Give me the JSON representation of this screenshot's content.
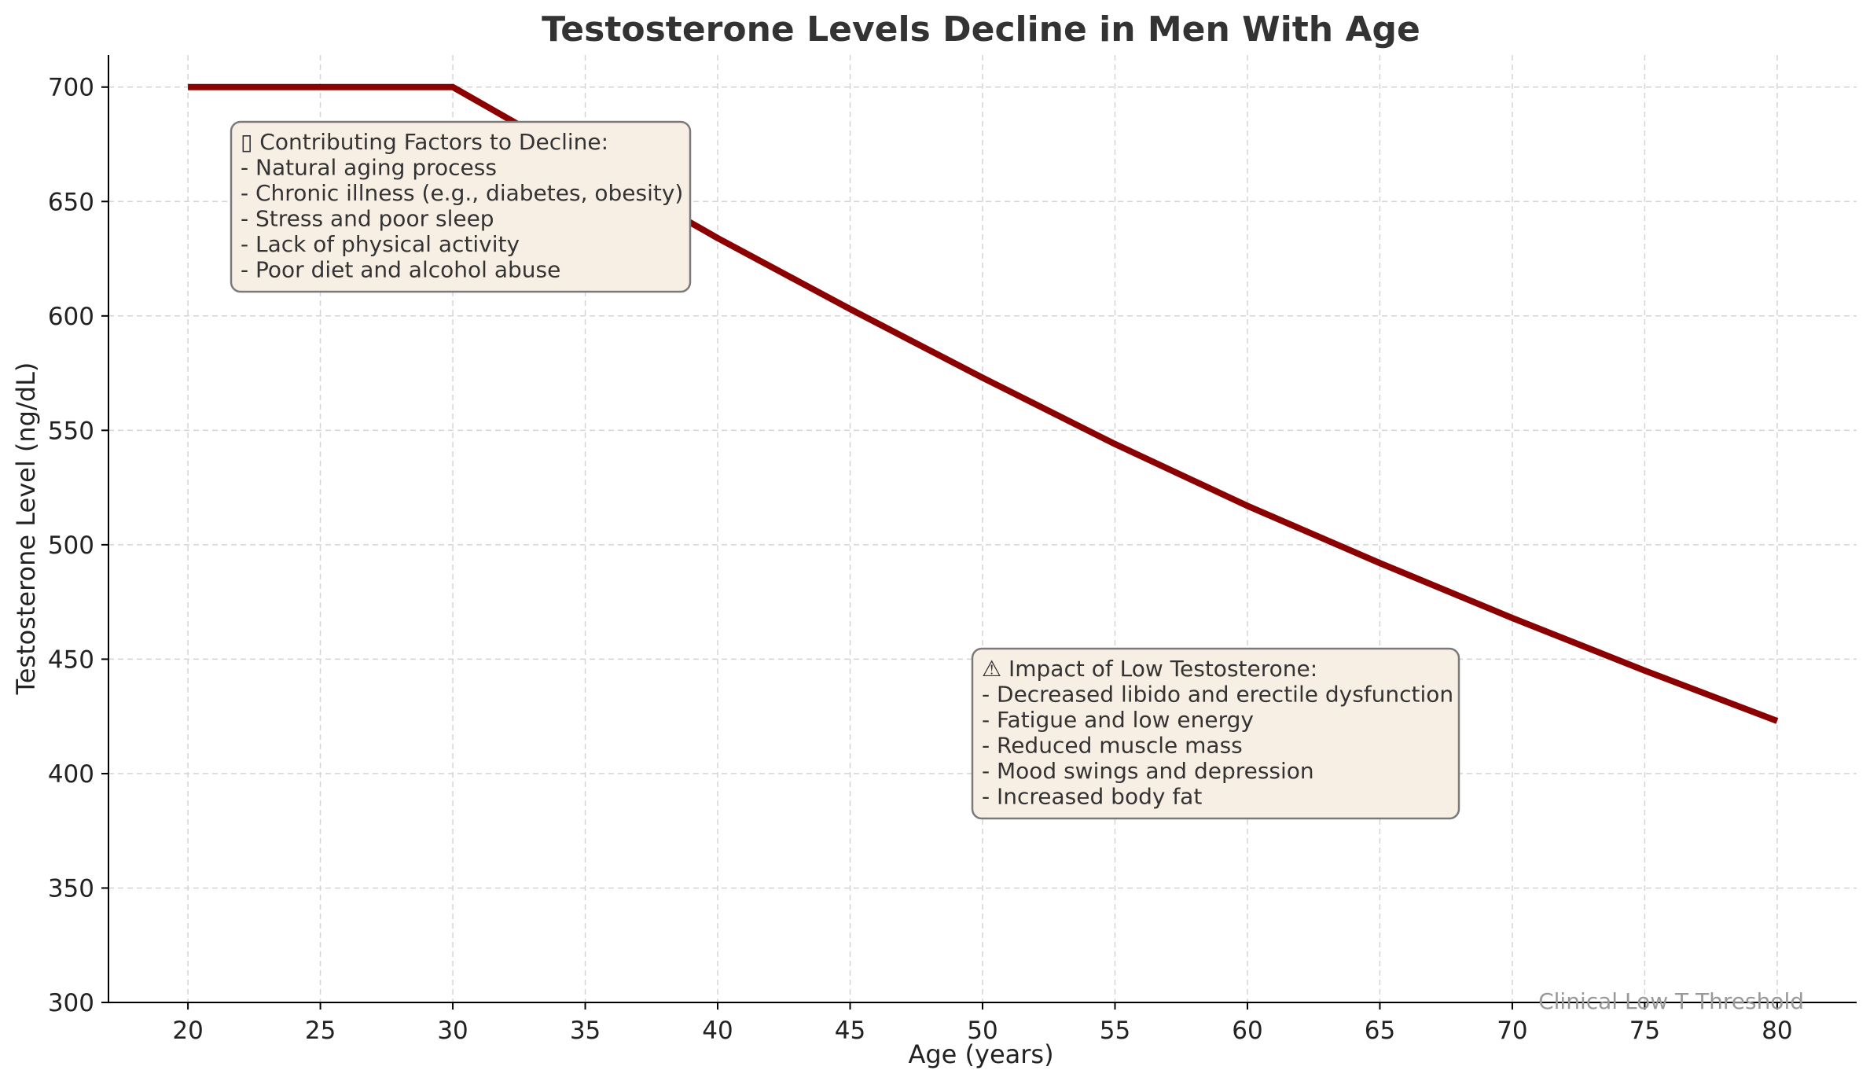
{
  "chart_data": {
    "type": "line",
    "title": "Testosterone Levels Decline in Men With Age",
    "xlabel": "Age (years)",
    "ylabel": "Testosterone Level (ng/dL)",
    "xlim": [
      17,
      83
    ],
    "ylim": [
      300,
      714
    ],
    "xticks": [
      20,
      25,
      30,
      35,
      40,
      45,
      50,
      55,
      60,
      65,
      70,
      75,
      80
    ],
    "yticks": [
      300,
      350,
      400,
      450,
      500,
      550,
      600,
      650,
      700
    ],
    "grid": true,
    "series": [
      {
        "color": "#8b0000",
        "x": [
          20,
          25,
          30,
          35,
          40,
          45,
          50,
          55,
          60,
          65,
          70,
          75,
          80
        ],
        "y": [
          700,
          700,
          700,
          667,
          634,
          603,
          573,
          544,
          517,
          492,
          468,
          445,
          423
        ]
      }
    ],
    "annotations": [
      {
        "id": "factors",
        "icon": "emoji-glyph-missing",
        "lines": [
          "▯ Contributing Factors to Decline:",
          "- Natural aging process",
          "- Chronic illness (e.g., diabetes, obesity)",
          "- Stress and poor sleep",
          "- Lack of physical activity",
          "- Poor diet and alcohol abuse"
        ]
      },
      {
        "id": "impact",
        "icon": "warning-icon",
        "lines": [
          "⚠ Impact of Low Testosterone:",
          "- Decreased libido and erectile dysfunction",
          "- Fatigue and low energy",
          "- Reduced muscle mass",
          "- Mood swings and depression",
          "- Increased body fat"
        ]
      }
    ],
    "threshold_label": "Clinical Low T Threshold",
    "colors": {
      "line": "#8b0000",
      "annotation_fill": "#f8efe4",
      "annotation_border": "#7a7a7a",
      "threshold_text": "#999999"
    }
  }
}
